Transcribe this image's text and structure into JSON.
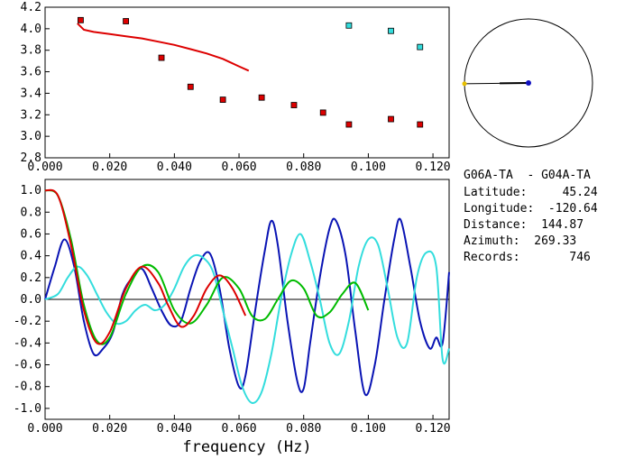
{
  "chart_data": [
    {
      "type": "scatter",
      "panel": "phase-velocity",
      "xlim": [
        0.0,
        0.125
      ],
      "ylim": [
        2.8,
        4.2
      ],
      "xticks": [
        "0.000",
        "0.020",
        "0.040",
        "0.060",
        "0.080",
        "0.100",
        "0.120"
      ],
      "yticks": [
        "2.8",
        "3.0",
        "3.2",
        "3.4",
        "3.6",
        "3.8",
        "4.0",
        "4.2"
      ],
      "series": [
        {
          "kind": "points",
          "color": "#dd0000",
          "x": [
            0.011,
            0.025,
            0.036,
            0.045,
            0.055,
            0.067,
            0.077,
            0.086,
            0.094,
            0.107,
            0.116
          ],
          "y": [
            4.08,
            4.07,
            3.73,
            3.46,
            3.34,
            3.36,
            3.29,
            3.22,
            3.11,
            3.16,
            3.11
          ]
        },
        {
          "kind": "points",
          "color": "#33dddd",
          "x": [
            0.094,
            0.107,
            0.116
          ],
          "y": [
            4.03,
            3.98,
            3.83
          ]
        },
        {
          "kind": "curve",
          "color": "#dd0000",
          "x": [
            0.01,
            0.012,
            0.015,
            0.02,
            0.025,
            0.03,
            0.035,
            0.04,
            0.045,
            0.05,
            0.055,
            0.06,
            0.063
          ],
          "y": [
            4.05,
            3.99,
            3.97,
            3.95,
            3.93,
            3.91,
            3.88,
            3.85,
            3.81,
            3.77,
            3.72,
            3.65,
            3.61
          ]
        }
      ]
    },
    {
      "type": "line",
      "panel": "correlation",
      "xlabel": "frequency (Hz)",
      "xlim": [
        0.0,
        0.125
      ],
      "ylim": [
        -1.1,
        1.1
      ],
      "xticks": [
        "0.000",
        "0.020",
        "0.040",
        "0.060",
        "0.080",
        "0.100",
        "0.120"
      ],
      "yticks": [
        "1.0",
        "0.8",
        "0.6",
        "0.4",
        "0.2",
        "0.0",
        "-0.2",
        "-0.4",
        "-0.6",
        "-0.8",
        "-1.0"
      ],
      "series": [
        {
          "color": "#0a14b4",
          "x": [
            0.0,
            0.003,
            0.006,
            0.009,
            0.012,
            0.015,
            0.018,
            0.021,
            0.024,
            0.027,
            0.03,
            0.033,
            0.036,
            0.039,
            0.042,
            0.045,
            0.048,
            0.051,
            0.054,
            0.057,
            0.06,
            0.062,
            0.065,
            0.068,
            0.07,
            0.072,
            0.075,
            0.078,
            0.08,
            0.082,
            0.085,
            0.088,
            0.09,
            0.093,
            0.096,
            0.099,
            0.102,
            0.105,
            0.108,
            0.11,
            0.113,
            0.116,
            0.119,
            0.121,
            0.123,
            0.125
          ],
          "y": [
            0.0,
            0.3,
            0.55,
            0.3,
            -0.2,
            -0.5,
            -0.45,
            -0.3,
            0.05,
            0.2,
            0.28,
            0.1,
            -0.1,
            -0.24,
            -0.2,
            0.1,
            0.35,
            0.42,
            0.1,
            -0.45,
            -0.8,
            -0.7,
            -0.1,
            0.45,
            0.72,
            0.5,
            -0.2,
            -0.75,
            -0.82,
            -0.4,
            0.2,
            0.65,
            0.72,
            0.4,
            -0.3,
            -0.87,
            -0.6,
            0.0,
            0.55,
            0.73,
            0.3,
            -0.2,
            -0.45,
            -0.35,
            -0.4,
            0.25
          ]
        },
        {
          "color": "#33dddd",
          "x": [
            0.0,
            0.004,
            0.007,
            0.01,
            0.013,
            0.016,
            0.019,
            0.022,
            0.025,
            0.028,
            0.031,
            0.034,
            0.037,
            0.04,
            0.043,
            0.046,
            0.049,
            0.052,
            0.055,
            0.058,
            0.061,
            0.064,
            0.067,
            0.07,
            0.073,
            0.076,
            0.079,
            0.082,
            0.085,
            0.088,
            0.091,
            0.094,
            0.097,
            0.1,
            0.103,
            0.106,
            0.109,
            0.112,
            0.115,
            0.118,
            0.121,
            0.123,
            0.125
          ],
          "y": [
            0.0,
            0.05,
            0.2,
            0.3,
            0.22,
            0.05,
            -0.12,
            -0.22,
            -0.2,
            -0.1,
            -0.05,
            -0.1,
            -0.05,
            0.1,
            0.3,
            0.4,
            0.38,
            0.25,
            -0.1,
            -0.45,
            -0.8,
            -0.95,
            -0.85,
            -0.5,
            0.0,
            0.4,
            0.6,
            0.35,
            0.0,
            -0.4,
            -0.5,
            -0.2,
            0.3,
            0.55,
            0.5,
            0.1,
            -0.35,
            -0.4,
            0.2,
            0.43,
            0.3,
            -0.55,
            -0.45
          ]
        },
        {
          "color": "#00bb00",
          "x": [
            0.0,
            0.004,
            0.008,
            0.012,
            0.016,
            0.02,
            0.025,
            0.03,
            0.035,
            0.04,
            0.045,
            0.05,
            0.055,
            0.06,
            0.064,
            0.068,
            0.072,
            0.076,
            0.08,
            0.084,
            0.088,
            0.092,
            0.096,
            0.1
          ],
          "y": [
            1.0,
            0.95,
            0.55,
            -0.05,
            -0.38,
            -0.35,
            0.05,
            0.3,
            0.25,
            -0.1,
            -0.22,
            -0.05,
            0.2,
            0.1,
            -0.15,
            -0.18,
            0.0,
            0.17,
            0.1,
            -0.15,
            -0.12,
            0.05,
            0.15,
            -0.1
          ]
        },
        {
          "color": "#dd0000",
          "x": [
            0.0,
            0.004,
            0.008,
            0.012,
            0.016,
            0.02,
            0.025,
            0.03,
            0.035,
            0.038,
            0.042,
            0.046,
            0.05,
            0.054,
            0.058,
            0.062
          ],
          "y": [
            1.0,
            0.95,
            0.5,
            -0.1,
            -0.4,
            -0.3,
            0.1,
            0.3,
            0.15,
            -0.05,
            -0.25,
            -0.15,
            0.1,
            0.22,
            0.1,
            -0.15
          ]
        }
      ]
    }
  ],
  "info": {
    "pair": "G06A-TA  - G04A-TA",
    "rows": [
      "Latitude:     45.24",
      "Longitude:  -120.64",
      "Distance:  144.87",
      "Azimuth:  269.33",
      "Records:       746"
    ]
  },
  "map": {
    "radius_px": 71,
    "station_color": "#1010c0",
    "end_color": "#e8c000",
    "azimuth_deg": 269.33
  }
}
